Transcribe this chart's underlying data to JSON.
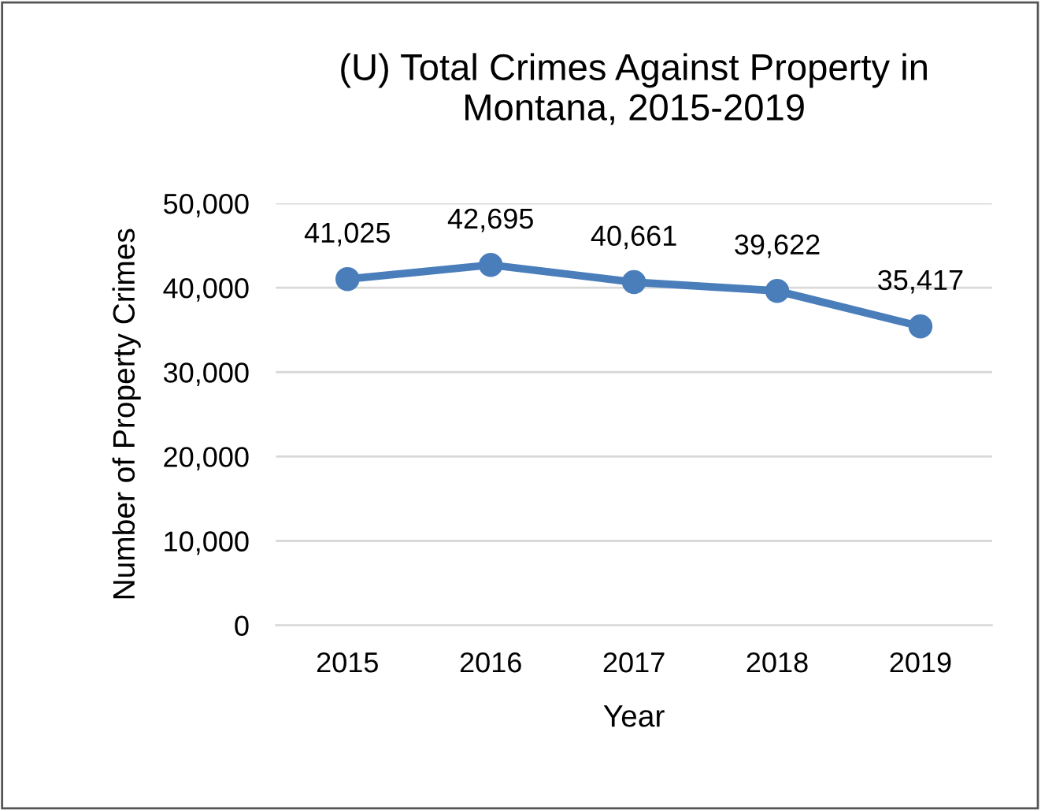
{
  "chart_data": {
    "type": "line",
    "title": "(U) Total Crimes Against Property in\nMontana, 2015-2019",
    "xlabel": "Year",
    "ylabel": "Number of Property Crimes",
    "categories": [
      "2015",
      "2016",
      "2017",
      "2018",
      "2019"
    ],
    "series": [
      {
        "color": "#4a7ebb",
        "values": [
          41025,
          42695,
          40661,
          39622,
          35417
        ],
        "value_labels": [
          "41,025",
          "42,695",
          "40,661",
          "39,622",
          "35,417"
        ]
      }
    ],
    "ylim": [
      0,
      50000
    ],
    "yticks": [
      {
        "value": 0,
        "label": "0"
      },
      {
        "value": 10000,
        "label": "10,000"
      },
      {
        "value": 20000,
        "label": "20,000"
      },
      {
        "value": 30000,
        "label": "30,000"
      },
      {
        "value": 40000,
        "label": "40,000"
      },
      {
        "value": 50000,
        "label": "50,000"
      }
    ],
    "grid": "y",
    "marker": "circle",
    "line_style": "solid",
    "legend": false
  }
}
